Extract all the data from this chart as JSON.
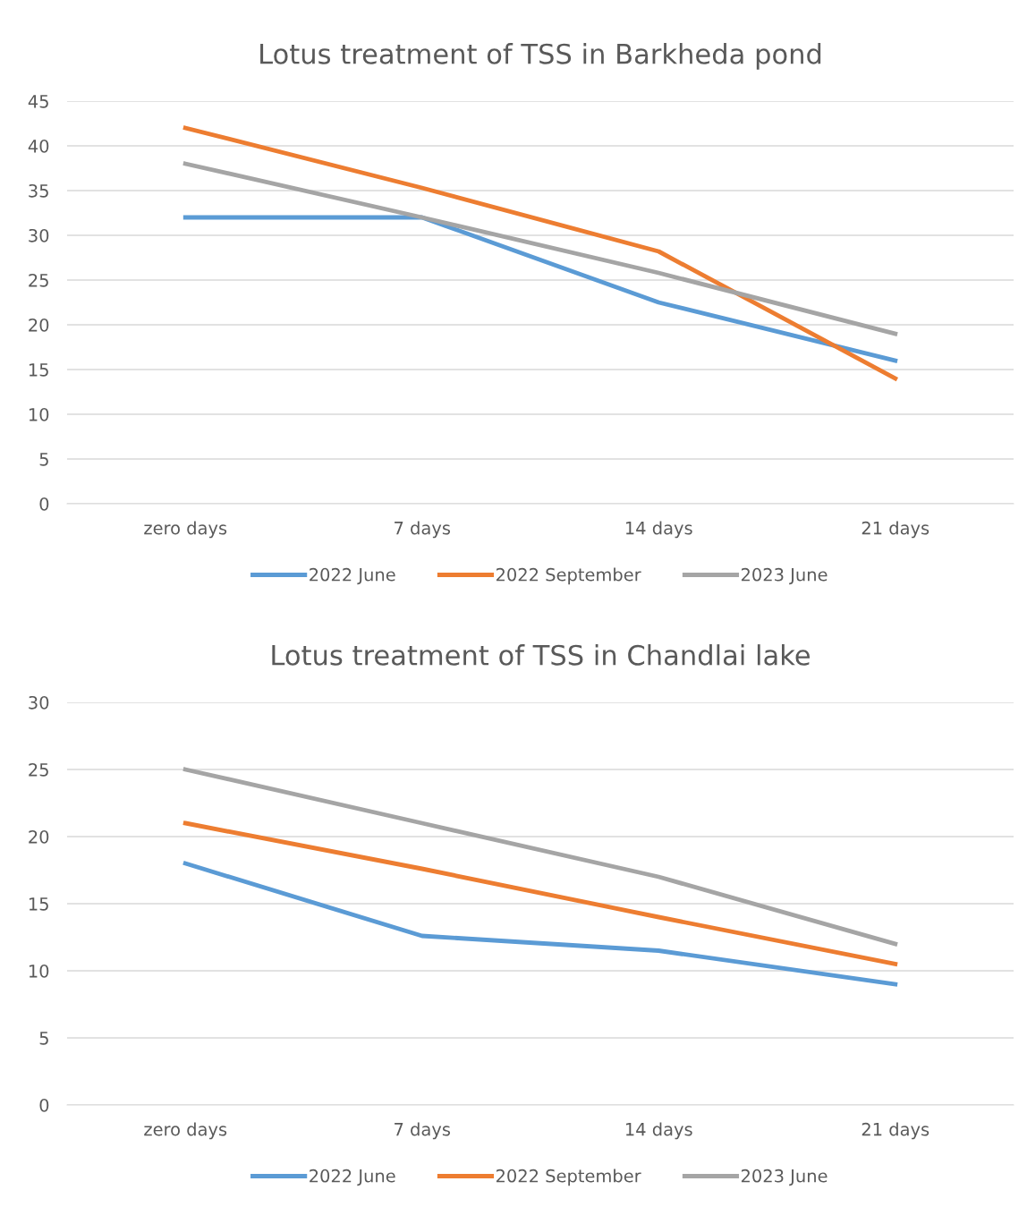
{
  "chart_data": [
    {
      "type": "line",
      "title": "Lotus treatment of TSS in Barkheda pond",
      "categories": [
        "zero days",
        "7 days",
        "14 days",
        "21 days"
      ],
      "series": [
        {
          "name": "2022 June",
          "color": "#5b9bd5",
          "values": [
            32,
            32,
            22.5,
            16
          ]
        },
        {
          "name": "2022 September",
          "color": "#ed7d31",
          "values": [
            42,
            35.3,
            28.2,
            14
          ]
        },
        {
          "name": "2023 June",
          "color": "#a5a5a5",
          "values": [
            38,
            32,
            25.8,
            19
          ]
        }
      ],
      "ylim": [
        0,
        45
      ],
      "yticks": [
        0,
        5,
        10,
        15,
        20,
        25,
        30,
        35,
        40,
        45
      ],
      "grid": "y",
      "legend": "bottom",
      "line_style": "solid",
      "marker": "none"
    },
    {
      "type": "line",
      "title": "Lotus treatment of TSS in Chandlai lake",
      "categories": [
        "zero days",
        "7 days",
        "14 days",
        "21 days"
      ],
      "series": [
        {
          "name": "2022 June",
          "color": "#5b9bd5",
          "values": [
            18,
            12.6,
            11.5,
            9
          ]
        },
        {
          "name": "2022 September",
          "color": "#ed7d31",
          "values": [
            21,
            17.6,
            14,
            10.5
          ]
        },
        {
          "name": "2023 June",
          "color": "#a5a5a5",
          "values": [
            25,
            21,
            17,
            12
          ]
        }
      ],
      "ylim": [
        0,
        30
      ],
      "yticks": [
        0,
        5,
        10,
        15,
        20,
        25,
        30
      ],
      "grid": "y",
      "legend": "bottom",
      "line_style": "solid",
      "marker": "none"
    }
  ]
}
